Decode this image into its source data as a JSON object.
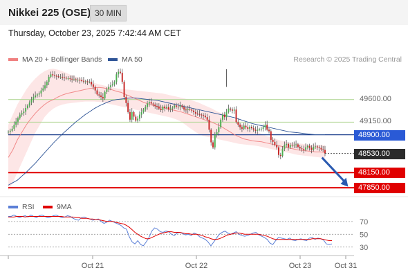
{
  "header": {
    "title": "Nikkei 225 (OSE)",
    "interval": "30 MIN",
    "datetime": "Thursday, October 23, 2025 7:42:44 AM CET"
  },
  "legend": {
    "ma20": "MA 20 + Bollinger Bands",
    "ma50": "MA 50",
    "credit": "Research © 2025 Trading Central"
  },
  "colors": {
    "bull": "#4caf50",
    "bear": "#c62828",
    "ma20": "#f08080",
    "band": "#fde2e2",
    "ma50": "#2f5597",
    "support": "#e00000",
    "pivot": "#1a3e8c",
    "green_level": "#b5d89a",
    "rsi": "#5b7fd6",
    "rsi_ma": "#e00000"
  },
  "chart_data": [
    {
      "type": "line",
      "title": "",
      "xlabel": "",
      "ylabel": "",
      "ylim": [
        47700,
        50200
      ],
      "x_ticks": [
        "Oct 21",
        "Oct 22",
        "Oct 23",
        "Oct 31"
      ],
      "levels": [
        {
          "value": 49600,
          "label": "49600.00",
          "kind": "resistance"
        },
        {
          "value": 49150,
          "label": "49150.00",
          "kind": "resistance"
        },
        {
          "value": 48900,
          "label": "48900.00",
          "kind": "pivot"
        },
        {
          "value": 48150,
          "label": "48150.00",
          "kind": "support"
        },
        {
          "value": 47850,
          "label": "47850.00",
          "kind": "support"
        }
      ],
      "last_price": {
        "value": 48530,
        "label": "48530.00"
      },
      "close_path": [
        48960,
        48980,
        49020,
        49100,
        49160,
        49230,
        49300,
        49330,
        49360,
        49430,
        49480,
        49540,
        49600,
        49650,
        49680,
        49700,
        49720,
        49780,
        49820,
        49880,
        49950,
        50050,
        50100,
        50080,
        50070,
        50060,
        50050,
        50050,
        50040,
        50030,
        50020,
        50020,
        50010,
        50000,
        50000,
        49990,
        49990,
        49980,
        49970,
        49960,
        49960,
        49950,
        49950,
        49900,
        49850,
        49780,
        49700,
        49680,
        49650,
        49620,
        49750,
        49800,
        49850,
        49880,
        49900,
        49950,
        50100,
        50150,
        50130,
        49950,
        49650,
        49530,
        49350,
        49200,
        49350,
        49260,
        49180,
        49220,
        49300,
        49350,
        49400,
        49450,
        49520,
        49550,
        49520,
        49500,
        49470,
        49460,
        49420,
        49390,
        49460,
        49430,
        49450,
        49400,
        49420,
        49440,
        49480,
        49460,
        49450,
        49480,
        49450,
        49400,
        49390,
        49410,
        49400,
        49380,
        49350,
        49320,
        49310,
        49300,
        49290,
        49280,
        49250,
        49200,
        49000,
        48750,
        48650,
        48900,
        48950,
        49050,
        49200,
        49300,
        49250,
        49350,
        49420,
        49400,
        49380,
        49400,
        49150,
        49100,
        49050,
        49020,
        49080,
        49050,
        49020,
        49060,
        49030,
        49000,
        48980,
        49000,
        49010,
        49020,
        49050,
        49100,
        49000,
        48970,
        48800,
        48760,
        48700,
        48650,
        48500,
        48480,
        48620,
        48700,
        48720,
        48650,
        48700,
        48690,
        48700,
        48710,
        48660,
        48630,
        48620,
        48600,
        48650,
        48680,
        48640,
        48600,
        48660,
        48670,
        48650,
        48640,
        48610,
        48600,
        48530
      ],
      "ma20": [
        48450,
        48600,
        48800,
        48950,
        49100,
        49220,
        49330,
        49420,
        49500,
        49560,
        49600,
        49650,
        49690,
        49720,
        49740,
        49760,
        49780,
        49800,
        49820,
        49830,
        49840,
        49830,
        49810,
        49790,
        49760,
        49740,
        49700,
        49660,
        49620,
        49580,
        49540,
        49510,
        49480,
        49460,
        49440,
        49420,
        49400,
        49380,
        49360,
        49330,
        49300,
        49270,
        49240,
        49210,
        49180,
        49150,
        49110,
        49070,
        49010,
        48960,
        48900,
        48860,
        48820,
        48800,
        48780,
        48770,
        48760,
        48740,
        48720,
        48700,
        48680,
        48660,
        48640,
        48620,
        48600,
        48590,
        48580,
        48570,
        48560,
        48560,
        48550
      ],
      "band_upper": [
        49100,
        49300,
        49500,
        49650,
        49800,
        49920,
        50020,
        50100,
        50160,
        50200,
        50210,
        50190,
        50160,
        50120,
        50080,
        50050,
        50020,
        49990,
        49960,
        49930,
        49900,
        49880,
        49860,
        49840,
        49820,
        49810,
        49800,
        49790,
        49780,
        49770,
        49760,
        49750,
        49740,
        49730,
        49720,
        49700,
        49680,
        49660,
        49640,
        49620,
        49600,
        49570,
        49540,
        49500,
        49460,
        49420,
        49370,
        49330,
        49290,
        49250,
        49200,
        49150,
        49100,
        49050,
        49000,
        48960,
        48920,
        48880,
        48850,
        48820,
        48790,
        48770,
        48750,
        48740,
        48730,
        48720,
        48710,
        48700,
        48700,
        48700,
        48690
      ],
      "band_lower": [
        47800,
        47950,
        48150,
        48350,
        48550,
        48750,
        48950,
        49100,
        49250,
        49350,
        49420,
        49470,
        49500,
        49520,
        49530,
        49540,
        49550,
        49560,
        49560,
        49560,
        49550,
        49540,
        49520,
        49500,
        49480,
        49460,
        49440,
        49420,
        49400,
        49380,
        49360,
        49340,
        49320,
        49300,
        49280,
        49260,
        49240,
        49210,
        49170,
        49110,
        49040,
        48980,
        48920,
        48880,
        48860,
        48840,
        48820,
        48800,
        48780,
        48760,
        48740,
        48720,
        48710,
        48700,
        48690,
        48680,
        48660,
        48640,
        48620,
        48600,
        48580,
        48560,
        48540,
        48520,
        48500,
        48490,
        48480,
        48470,
        48460,
        48450,
        48440
      ],
      "ma50": [
        47900,
        47950,
        48000,
        48080,
        48160,
        48250,
        48340,
        48440,
        48540,
        48640,
        48740,
        48830,
        48920,
        49000,
        49080,
        49160,
        49230,
        49300,
        49360,
        49420,
        49470,
        49510,
        49550,
        49580,
        49600,
        49610,
        49620,
        49630,
        49630,
        49620,
        49610,
        49600,
        49590,
        49580,
        49560,
        49540,
        49520,
        49500,
        49480,
        49460,
        49440,
        49420,
        49400,
        49380,
        49360,
        49340,
        49320,
        49300,
        49280,
        49260,
        49240,
        49210,
        49180,
        49150,
        49120,
        49100,
        49080,
        49060,
        49040,
        49020,
        49000,
        48980,
        48960,
        48950,
        48940,
        48930,
        48920,
        48910,
        48900,
        48900,
        48900
      ],
      "forecast_arrow": [
        {
          "i": 161,
          "v": 48530
        },
        {
          "i": 176,
          "v": 47870
        }
      ]
    },
    {
      "type": "line",
      "title": "",
      "legend": [
        "RSI",
        "9MA"
      ],
      "ylim": [
        20,
        85
      ],
      "y_ticks": [
        70,
        50,
        30
      ],
      "rsi": [
        78,
        78,
        80,
        78,
        76,
        78,
        79,
        77,
        80,
        78,
        76,
        79,
        80,
        78,
        76,
        77,
        79,
        80,
        78,
        76,
        77,
        79,
        78,
        75,
        73,
        72,
        76,
        77,
        75,
        74,
        72,
        73,
        74,
        70,
        67,
        69,
        72,
        70,
        68,
        66,
        64,
        60,
        58,
        46,
        38,
        35,
        40,
        34,
        32,
        38,
        45,
        55,
        60,
        58,
        54,
        53,
        55,
        54,
        50,
        48,
        52,
        53,
        51,
        49,
        50,
        48,
        52,
        50,
        46,
        44,
        42,
        38,
        32,
        38,
        44,
        50,
        53,
        55,
        52,
        50,
        52,
        54,
        50,
        48,
        47,
        48,
        50,
        52,
        53,
        49,
        47,
        45,
        42,
        36,
        34,
        40,
        45,
        44,
        43,
        42,
        44,
        41,
        40,
        42,
        43,
        41,
        40,
        44,
        45,
        42,
        44,
        43,
        41,
        35,
        34,
        35
      ],
      "rsi_ma": [
        77,
        77,
        77,
        78,
        78,
        78,
        77,
        78,
        78,
        78,
        78,
        78,
        78,
        78,
        78,
        78,
        78,
        78,
        78,
        78,
        77,
        77,
        77,
        77,
        76,
        76,
        75,
        75,
        75,
        74,
        74,
        73,
        73,
        72,
        71,
        70,
        70,
        70,
        69,
        68,
        67,
        66,
        64,
        61,
        57,
        53,
        50,
        47,
        45,
        43,
        43,
        45,
        47,
        49,
        51,
        52,
        53,
        54,
        54,
        53,
        53,
        53,
        52,
        51,
        51,
        50,
        50,
        50,
        49,
        48,
        46,
        45,
        43,
        42,
        42,
        43,
        45,
        47,
        49,
        50,
        51,
        52,
        52,
        51,
        50,
        50,
        50,
        50,
        50,
        50,
        49,
        48,
        47,
        45,
        43,
        42,
        42,
        42,
        42,
        42,
        42,
        42,
        42,
        42,
        42,
        42,
        42,
        42,
        43,
        43,
        43,
        43,
        42,
        41,
        40,
        40
      ]
    }
  ]
}
